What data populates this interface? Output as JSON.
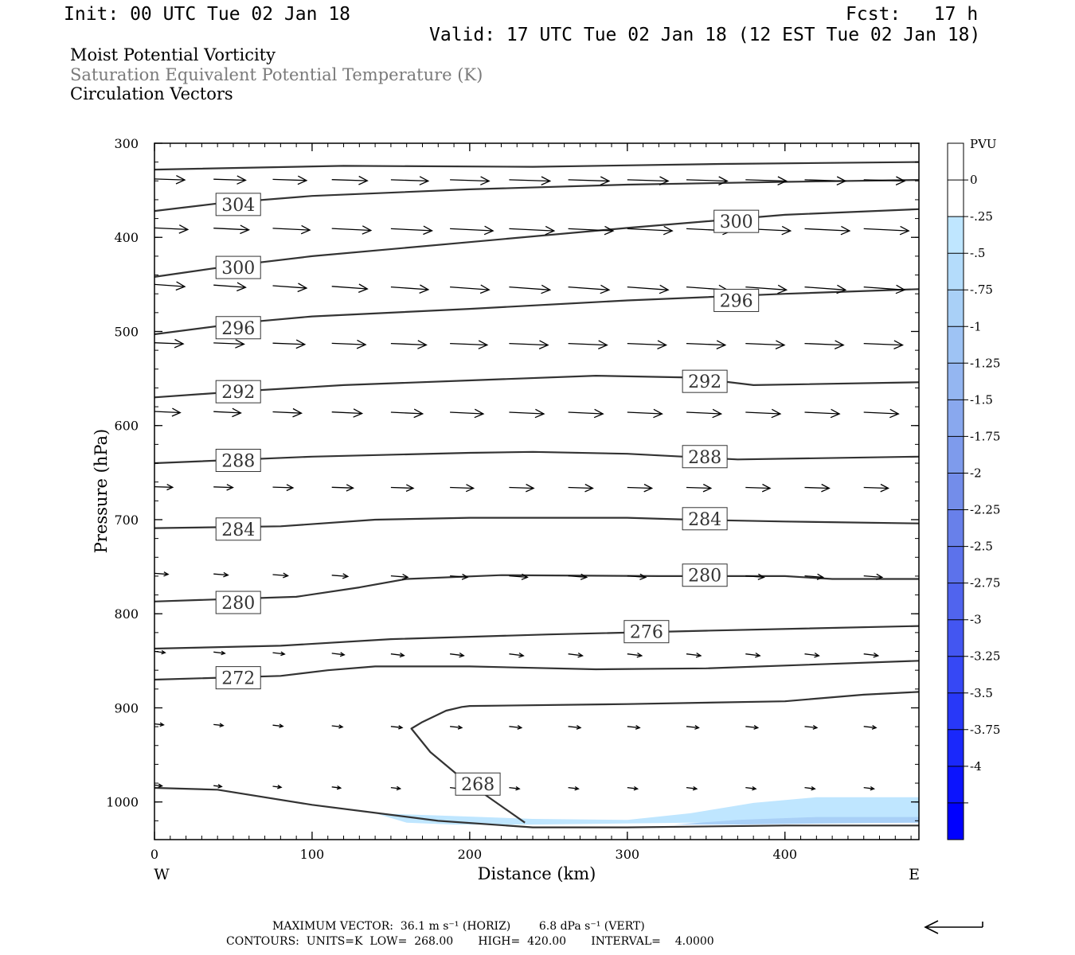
{
  "header": {
    "init": "Init: 00 UTC Tue 02 Jan 18",
    "fcst": "Fcst:   17 h",
    "valid": "Valid: 17 UTC Tue 02 Jan 18 (12 EST Tue 02 Jan 18)"
  },
  "titles": {
    "line1": "Moist Potential Vorticity",
    "line2": "Saturation Equivalent Potential Temperature (K)",
    "line3": "Circulation Vectors"
  },
  "footer": {
    "max_vector": "MAXIMUM VECTOR:  36.1 m s⁻¹ (HORIZ)        6.8 dPa s⁻¹ (VERT)",
    "contours": "CONTOURS:  UNITS=K  LOW=  268.00       HIGH=  420.00       INTERVAL=    4.0000"
  },
  "colors": {
    "contour": "#333333",
    "vector": "#000000",
    "shade_light": "#bfe6ff",
    "shade_mid": "#a9d0f7",
    "cbar_top": "#ffffff",
    "cbar_bottom": "#0000ff"
  },
  "chart_data": {
    "type": "cross-section",
    "xlabel": "Distance (km)",
    "ylabel": "Pressure (hPa)",
    "xlim": [
      0,
      485
    ],
    "ylim": [
      300,
      1040
    ],
    "y_inverted": true,
    "x_ticks": [
      0,
      100,
      200,
      300,
      400
    ],
    "y_ticks": [
      300,
      400,
      500,
      600,
      700,
      800,
      900,
      1000
    ],
    "x_end_labels": {
      "left": "W",
      "right": "E"
    },
    "colorbar": {
      "label": "PVU",
      "tick_labels": [
        "0",
        "-.25",
        "-.5",
        "-.75",
        "-1",
        "-1.25",
        "-1.5",
        "-1.75",
        "-2",
        "-2.25",
        "-2.5",
        "-2.75",
        "-3",
        "-3.25",
        "-3.5",
        "-3.75",
        "-4"
      ],
      "levels": [
        0.25,
        0,
        -0.25,
        -0.5,
        -0.75,
        -1,
        -1.25,
        -1.5,
        -1.75,
        -2,
        -2.25,
        -2.5,
        -2.75,
        -3,
        -3.25,
        -3.5,
        -3.75,
        -4,
        -4.25
      ],
      "colors": [
        "#ffffff",
        "#ffffff",
        "#bfe6ff",
        "#b4dcfb",
        "#a9d0f7",
        "#9ec3f4",
        "#94b6f1",
        "#89a8ee",
        "#7e9bec",
        "#738dea",
        "#6880ea",
        "#5c72eb",
        "#5064ee",
        "#4356f1",
        "#3648f5",
        "#2838f8",
        "#1a28fb",
        "#0c14fd",
        "#0000ff"
      ]
    },
    "contours": [
      {
        "label": "",
        "points": [
          [
            0,
            328
          ],
          [
            120,
            324
          ],
          [
            240,
            325
          ],
          [
            360,
            322
          ],
          [
            485,
            320
          ]
        ]
      },
      {
        "label": "304",
        "points": [
          [
            0,
            372
          ],
          [
            40,
            364
          ],
          [
            100,
            356
          ],
          [
            200,
            349
          ],
          [
            300,
            344
          ],
          [
            400,
            341
          ],
          [
            485,
            339
          ]
        ]
      },
      {
        "label": "300",
        "points": [
          [
            0,
            442
          ],
          [
            50,
            430
          ],
          [
            100,
            420
          ],
          [
            200,
            405
          ],
          [
            300,
            390
          ],
          [
            400,
            376
          ],
          [
            485,
            370
          ]
        ]
      },
      {
        "label": "296",
        "points": [
          [
            0,
            503
          ],
          [
            60,
            490
          ],
          [
            100,
            484
          ],
          [
            200,
            476
          ],
          [
            300,
            467
          ],
          [
            400,
            460
          ],
          [
            485,
            455
          ]
        ]
      },
      {
        "label": "292",
        "points": [
          [
            0,
            570
          ],
          [
            60,
            563
          ],
          [
            120,
            557
          ],
          [
            200,
            552
          ],
          [
            280,
            547
          ],
          [
            340,
            549
          ],
          [
            380,
            557
          ],
          [
            485,
            554
          ]
        ]
      },
      {
        "label": "288",
        "points": [
          [
            0,
            640
          ],
          [
            100,
            633
          ],
          [
            200,
            629
          ],
          [
            240,
            628
          ],
          [
            300,
            630
          ],
          [
            370,
            636
          ],
          [
            485,
            633
          ]
        ]
      },
      {
        "label": "284",
        "points": [
          [
            0,
            709
          ],
          [
            80,
            707
          ],
          [
            140,
            700
          ],
          [
            200,
            698
          ],
          [
            300,
            698
          ],
          [
            340,
            700
          ],
          [
            400,
            702
          ],
          [
            485,
            704
          ]
        ]
      },
      {
        "label": "280",
        "points": [
          [
            0,
            787
          ],
          [
            90,
            782
          ],
          [
            130,
            772
          ],
          [
            160,
            763
          ],
          [
            220,
            759
          ],
          [
            320,
            760
          ],
          [
            400,
            760
          ],
          [
            430,
            763
          ],
          [
            485,
            763
          ]
        ]
      },
      {
        "label": "276",
        "points": [
          [
            0,
            837
          ],
          [
            80,
            834
          ],
          [
            150,
            827
          ],
          [
            250,
            822
          ],
          [
            350,
            818
          ],
          [
            485,
            813
          ]
        ]
      },
      {
        "label": "272",
        "points": [
          [
            0,
            870
          ],
          [
            80,
            866
          ],
          [
            110,
            860
          ],
          [
            140,
            856
          ],
          [
            200,
            856
          ],
          [
            280,
            859
          ],
          [
            350,
            858
          ],
          [
            485,
            850
          ]
        ]
      },
      {
        "label": "",
        "points": [
          [
            485,
            883
          ],
          [
            450,
            886
          ],
          [
            400,
            893
          ],
          [
            300,
            896
          ],
          [
            200,
            898
          ],
          [
            195,
            899
          ],
          [
            185,
            903
          ],
          [
            170,
            915
          ],
          [
            163,
            922
          ],
          [
            175,
            947
          ],
          [
            195,
            975
          ],
          [
            235,
            1022
          ]
        ]
      },
      {
        "label": "268",
        "points": [
          [
            0,
            985
          ],
          [
            40,
            987
          ],
          [
            100,
            1003
          ],
          [
            180,
            1020
          ],
          [
            240,
            1027
          ],
          [
            300,
            1027
          ],
          [
            400,
            1025
          ],
          [
            485,
            1025
          ]
        ]
      }
    ],
    "contour_labels": [
      {
        "text": "304",
        "x": 38,
        "y": 365
      },
      {
        "text": "300",
        "x": 38,
        "y": 432
      },
      {
        "text": "300",
        "x": 354,
        "y": 383
      },
      {
        "text": "296",
        "x": 38,
        "y": 496
      },
      {
        "text": "296",
        "x": 354,
        "y": 467
      },
      {
        "text": "292",
        "x": 38,
        "y": 564
      },
      {
        "text": "292",
        "x": 334,
        "y": 553
      },
      {
        "text": "288",
        "x": 38,
        "y": 637
      },
      {
        "text": "288",
        "x": 334,
        "y": 633
      },
      {
        "text": "284",
        "x": 38,
        "y": 710
      },
      {
        "text": "284",
        "x": 334,
        "y": 699
      },
      {
        "text": "280",
        "x": 38,
        "y": 788
      },
      {
        "text": "280",
        "x": 334,
        "y": 759
      },
      {
        "text": "276",
        "x": 297,
        "y": 819
      },
      {
        "text": "272",
        "x": 38,
        "y": 868
      },
      {
        "text": "268",
        "x": 190,
        "y": 981
      }
    ],
    "shaded_regions": [
      {
        "pv": "-0.25",
        "points": [
          [
            140,
            1012
          ],
          [
            190,
            1015
          ],
          [
            240,
            1018
          ],
          [
            300,
            1019
          ],
          [
            340,
            1012
          ],
          [
            380,
            1001
          ],
          [
            420,
            995
          ],
          [
            485,
            995
          ],
          [
            485,
            1022
          ],
          [
            420,
            1022
          ],
          [
            340,
            1022
          ],
          [
            240,
            1024
          ],
          [
            190,
            1024
          ],
          [
            160,
            1022
          ]
        ]
      },
      {
        "pv": "-0.75",
        "points": [
          [
            330,
            1024
          ],
          [
            370,
            1019
          ],
          [
            420,
            1016
          ],
          [
            485,
            1016
          ],
          [
            485,
            1022
          ],
          [
            420,
            1023
          ],
          [
            370,
            1024
          ]
        ]
      }
    ],
    "vector_rows": [
      {
        "p": 338,
        "x0": 0,
        "dx": 37.5,
        "len": 20,
        "ang": 0.08
      },
      {
        "p": 390,
        "x0": 0,
        "dx": 37.5,
        "len": 22,
        "ang": 0.12
      },
      {
        "p": 450,
        "x0": 0,
        "dx": 37.5,
        "len": 20,
        "ang": 0.18
      },
      {
        "p": 512,
        "x0": 0,
        "dx": 37.5,
        "len": 19,
        "ang": 0.1
      },
      {
        "p": 585,
        "x0": 0,
        "dx": 37.5,
        "len": 17,
        "ang": 0.12
      },
      {
        "p": 665,
        "x0": 0,
        "dx": 37.5,
        "len": 12,
        "ang": 0.08
      },
      {
        "p": 757,
        "x0": 0,
        "dx": 37.5,
        "len": 9,
        "ang": 0.2
      },
      {
        "p": 840,
        "x0": 0,
        "dx": 37.5,
        "len": 7,
        "ang": 0.3
      },
      {
        "p": 917,
        "x0": 0,
        "dx": 37.5,
        "len": 6,
        "ang": 0.28
      },
      {
        "p": 982,
        "x0": 0,
        "dx": 37.5,
        "len": 5,
        "ang": 0.3
      }
    ],
    "vector_ref_arrow": true
  }
}
